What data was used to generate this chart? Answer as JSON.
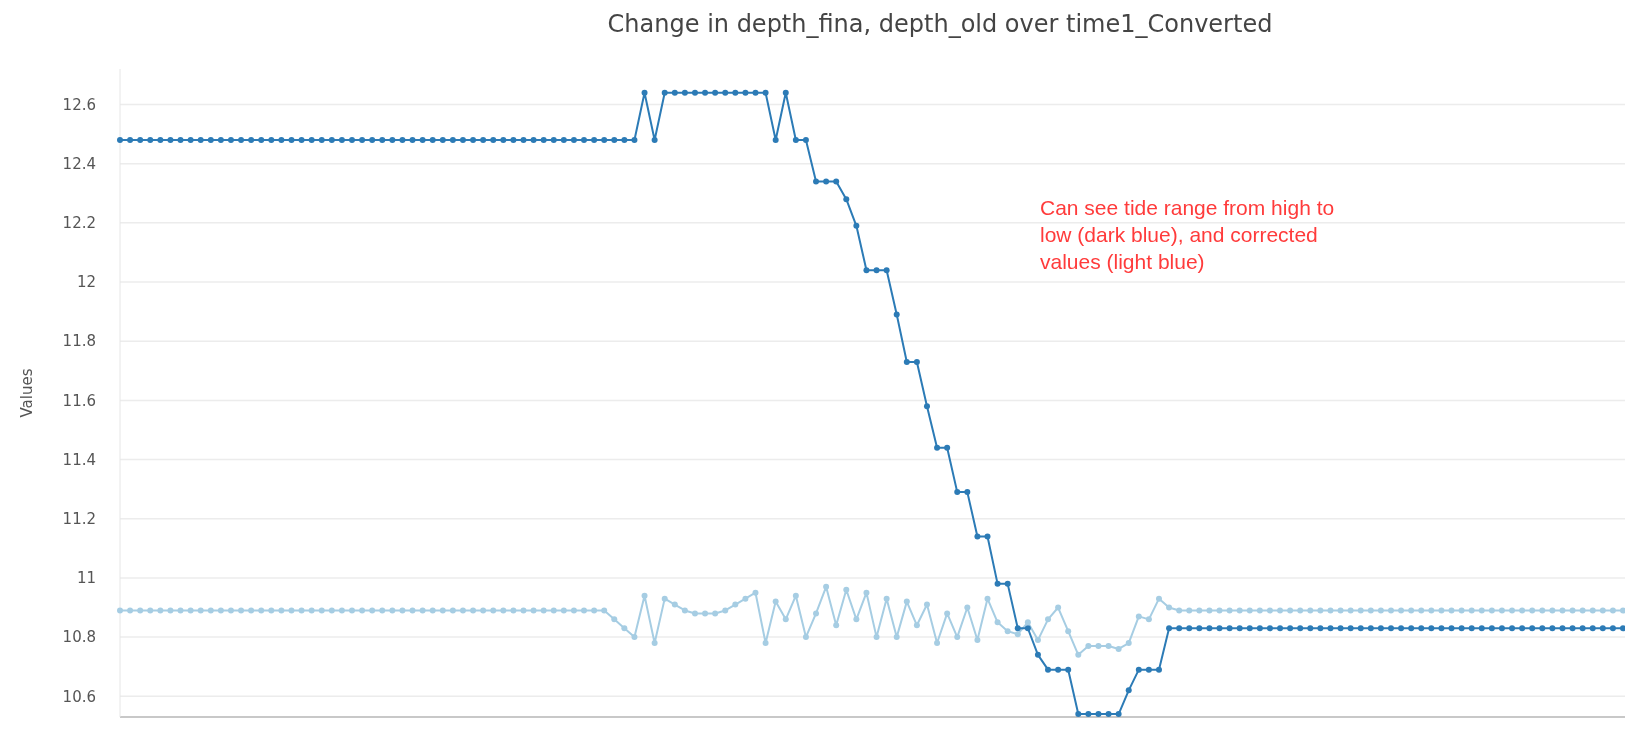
{
  "chart_data": {
    "type": "line",
    "title": "Change in depth_fina, depth_old over time1_Converted",
    "ylabel": "Values",
    "categories": [
      null,
      null,
      null,
      null,
      null,
      null,
      null,
      null,
      null,
      null,
      null,
      null,
      null,
      null,
      null,
      null,
      null,
      null,
      null,
      null,
      null,
      null,
      null,
      null,
      null,
      null,
      null,
      null,
      null,
      null,
      null,
      null,
      null,
      null,
      null,
      null,
      null,
      null,
      null,
      null,
      null,
      null,
      null,
      null,
      null,
      null,
      null,
      null,
      null,
      null,
      null,
      null,
      null,
      null,
      null,
      null,
      null,
      null,
      null,
      null,
      null,
      null,
      null,
      null,
      null,
      null,
      null,
      null,
      null,
      null,
      null,
      null,
      null,
      null,
      null,
      null,
      null,
      null,
      null,
      null,
      null,
      null,
      null,
      null,
      null,
      null,
      null,
      null,
      null,
      null,
      null,
      null,
      null,
      null,
      null,
      null,
      null,
      null,
      null,
      null,
      null,
      null,
      null,
      null,
      null,
      null,
      null,
      null,
      null,
      null,
      null,
      null,
      null,
      null,
      null,
      null,
      null,
      null,
      null,
      null,
      null,
      null,
      null,
      null,
      null,
      null,
      null,
      null,
      null,
      null,
      null,
      null,
      null,
      null,
      null,
      null,
      null,
      null,
      null,
      null,
      null,
      null,
      null,
      null,
      null,
      null,
      null,
      null,
      null,
      null
    ],
    "series": [
      {
        "color": "#a6cde3",
        "values": [
          10.89,
          10.89,
          10.89,
          10.89,
          10.89,
          10.89,
          10.89,
          10.89,
          10.89,
          10.89,
          10.89,
          10.89,
          10.89,
          10.89,
          10.89,
          10.89,
          10.89,
          10.89,
          10.89,
          10.89,
          10.89,
          10.89,
          10.89,
          10.89,
          10.89,
          10.89,
          10.89,
          10.89,
          10.89,
          10.89,
          10.89,
          10.89,
          10.89,
          10.89,
          10.89,
          10.89,
          10.89,
          10.89,
          10.89,
          10.89,
          10.89,
          10.89,
          10.89,
          10.89,
          10.89,
          10.89,
          10.89,
          10.89,
          10.89,
          10.86,
          10.83,
          10.8,
          10.94,
          10.78,
          10.93,
          10.91,
          10.89,
          10.88,
          10.88,
          10.88,
          10.89,
          10.91,
          10.93,
          10.95,
          10.78,
          10.92,
          10.86,
          10.94,
          10.8,
          10.88,
          10.97,
          10.84,
          10.96,
          10.86,
          10.95,
          10.8,
          10.93,
          10.8,
          10.92,
          10.84,
          10.91,
          10.78,
          10.88,
          10.8,
          10.9,
          10.79,
          10.93,
          10.85,
          10.82,
          10.81,
          10.85,
          10.79,
          10.86,
          10.9,
          10.82,
          10.74,
          10.77,
          10.77,
          10.77,
          10.76,
          10.78,
          10.87,
          10.86,
          10.93,
          10.9,
          10.89,
          10.89,
          10.89,
          10.89,
          10.89,
          10.89,
          10.89,
          10.89,
          10.89,
          10.89,
          10.89,
          10.89,
          10.89,
          10.89,
          10.89,
          10.89,
          10.89,
          10.89,
          10.89,
          10.89,
          10.89,
          10.89,
          10.89,
          10.89,
          10.89,
          10.89,
          10.89,
          10.89,
          10.89,
          10.89,
          10.89,
          10.89,
          10.89,
          10.89,
          10.89,
          10.89,
          10.89,
          10.89,
          10.89,
          10.89,
          10.89,
          10.89,
          10.89,
          10.89,
          10.89
        ]
      },
      {
        "color": "#2c7bb6",
        "values": [
          12.48,
          12.48,
          12.48,
          12.48,
          12.48,
          12.48,
          12.48,
          12.48,
          12.48,
          12.48,
          12.48,
          12.48,
          12.48,
          12.48,
          12.48,
          12.48,
          12.48,
          12.48,
          12.48,
          12.48,
          12.48,
          12.48,
          12.48,
          12.48,
          12.48,
          12.48,
          12.48,
          12.48,
          12.48,
          12.48,
          12.48,
          12.48,
          12.48,
          12.48,
          12.48,
          12.48,
          12.48,
          12.48,
          12.48,
          12.48,
          12.48,
          12.48,
          12.48,
          12.48,
          12.48,
          12.48,
          12.48,
          12.48,
          12.48,
          12.48,
          12.48,
          12.48,
          12.64,
          12.48,
          12.64,
          12.64,
          12.64,
          12.64,
          12.64,
          12.64,
          12.64,
          12.64,
          12.64,
          12.64,
          12.64,
          12.48,
          12.64,
          12.48,
          12.48,
          12.34,
          12.34,
          12.34,
          12.28,
          12.19,
          12.04,
          12.04,
          12.04,
          11.89,
          11.73,
          11.73,
          11.58,
          11.44,
          11.44,
          11.29,
          11.29,
          11.14,
          11.14,
          10.98,
          10.98,
          10.83,
          10.83,
          10.74,
          10.69,
          10.69,
          10.69,
          10.54,
          10.54,
          10.54,
          10.54,
          10.54,
          10.62,
          10.69,
          10.69,
          10.69,
          10.83,
          10.83,
          10.83,
          10.83,
          10.83,
          10.83,
          10.83,
          10.83,
          10.83,
          10.83,
          10.83,
          10.83,
          10.83,
          10.83,
          10.83,
          10.83,
          10.83,
          10.83,
          10.83,
          10.83,
          10.83,
          10.83,
          10.83,
          10.83,
          10.83,
          10.83,
          10.83,
          10.83,
          10.83,
          10.83,
          10.83,
          10.83,
          10.83,
          10.83,
          10.83,
          10.83,
          10.83,
          10.83,
          10.83,
          10.83,
          10.83,
          10.83,
          10.83,
          10.83,
          10.83,
          10.83
        ]
      }
    ],
    "ylim": [
      10.53,
      12.72
    ],
    "yticks": [
      10.6,
      10.8,
      11,
      11.2,
      11.4,
      11.6,
      11.8,
      12,
      12.2,
      12.4,
      12.6
    ],
    "grid": "y",
    "marker": "circle",
    "line_style": "solid",
    "tick_labels": "y",
    "annotations": [
      "Can see tide range from high to low (dark blue), and corrected values (light blue)"
    ]
  }
}
